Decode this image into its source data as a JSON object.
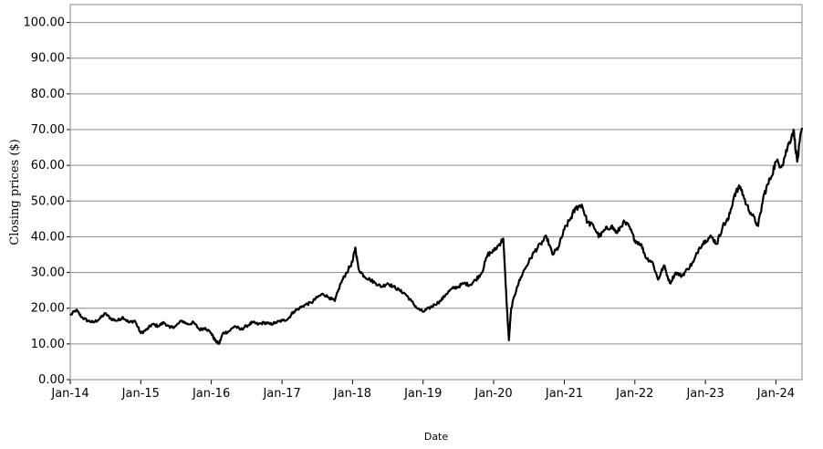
{
  "chart_data": {
    "type": "line",
    "title": "",
    "xlabel": "Date",
    "ylabel": "Closing prices ($)",
    "ylim": [
      0,
      105
    ],
    "y_ticks": [
      "0.00",
      "10.00",
      "20.00",
      "30.00",
      "40.00",
      "50.00",
      "60.00",
      "70.00",
      "80.00",
      "90.00",
      "100.00"
    ],
    "x_ticks": [
      "Jan-14",
      "Jan-15",
      "Jan-16",
      "Jan-17",
      "Jan-18",
      "Jan-19",
      "Jan-20",
      "Jan-21",
      "Jan-22",
      "Jan-23",
      "Jan-24"
    ],
    "x_range": [
      "2014-01-01",
      "2024-05-15"
    ],
    "grid": "horizontal",
    "legend": "none",
    "line_color": "#000000",
    "series": [
      {
        "x": [
          "2014-01-01",
          "2014-02-01",
          "2014-03-01",
          "2014-04-01",
          "2014-05-01",
          "2014-06-01",
          "2014-07-01",
          "2014-08-01",
          "2014-09-01",
          "2014-10-01",
          "2014-11-01",
          "2014-12-01",
          "2015-01-01",
          "2015-02-01",
          "2015-03-01",
          "2015-04-01",
          "2015-05-01",
          "2015-06-01",
          "2015-07-01",
          "2015-08-01",
          "2015-09-01",
          "2015-10-01",
          "2015-11-01",
          "2015-12-01",
          "2016-01-01",
          "2016-01-20",
          "2016-02-10",
          "2016-03-01",
          "2016-04-01",
          "2016-05-01",
          "2016-06-01",
          "2016-07-01",
          "2016-08-01",
          "2016-09-01",
          "2016-10-01",
          "2016-11-01",
          "2016-12-01",
          "2017-01-01",
          "2017-02-01",
          "2017-03-01",
          "2017-04-01",
          "2017-05-01",
          "2017-06-01",
          "2017-07-01",
          "2017-08-01",
          "2017-09-01",
          "2017-10-01",
          "2017-11-01",
          "2017-12-01",
          "2018-01-01",
          "2018-01-15",
          "2018-02-01",
          "2018-03-01",
          "2018-04-01",
          "2018-05-01",
          "2018-06-01",
          "2018-07-01",
          "2018-08-01",
          "2018-09-01",
          "2018-10-01",
          "2018-11-01",
          "2018-12-01",
          "2019-01-01",
          "2019-02-01",
          "2019-03-01",
          "2019-04-01",
          "2019-05-01",
          "2019-06-01",
          "2019-07-01",
          "2019-08-01",
          "2019-09-01",
          "2019-10-01",
          "2019-11-01",
          "2019-12-01",
          "2020-01-01",
          "2020-02-01",
          "2020-02-20",
          "2020-03-10",
          "2020-03-20",
          "2020-04-01",
          "2020-05-01",
          "2020-06-01",
          "2020-07-01",
          "2020-08-01",
          "2020-09-01",
          "2020-10-01",
          "2020-11-01",
          "2020-12-01",
          "2021-01-01",
          "2021-02-01",
          "2021-03-01",
          "2021-04-01",
          "2021-05-01",
          "2021-06-01",
          "2021-07-01",
          "2021-08-01",
          "2021-09-01",
          "2021-10-01",
          "2021-11-01",
          "2021-12-01",
          "2022-01-01",
          "2022-02-01",
          "2022-03-01",
          "2022-04-01",
          "2022-05-01",
          "2022-06-01",
          "2022-07-01",
          "2022-08-01",
          "2022-09-01",
          "2022-10-01",
          "2022-11-01",
          "2022-12-01",
          "2023-01-01",
          "2023-02-01",
          "2023-03-01",
          "2023-04-01",
          "2023-05-01",
          "2023-06-01",
          "2023-07-01",
          "2023-08-01",
          "2023-09-01",
          "2023-10-01",
          "2023-11-01",
          "2023-12-01",
          "2024-01-01",
          "2024-02-01",
          "2024-03-01",
          "2024-04-01",
          "2024-04-20",
          "2024-05-15"
        ],
        "y": [
          18,
          19.5,
          17.5,
          16.5,
          16,
          17,
          18.5,
          17,
          16.5,
          17.5,
          16,
          16.5,
          13,
          14,
          15.5,
          15,
          16,
          14.5,
          15,
          16.5,
          15.5,
          16,
          14,
          14.5,
          13,
          11,
          10,
          13,
          13.5,
          15,
          14,
          15,
          16,
          15.5,
          16,
          15.5,
          16,
          16.5,
          17,
          19,
          20,
          21,
          21.5,
          23,
          24,
          23,
          22,
          27,
          30,
          33,
          37,
          31,
          29,
          28,
          27,
          26,
          27,
          26,
          25,
          24,
          22,
          20,
          19,
          20,
          21,
          22,
          24,
          25.5,
          26,
          27,
          26.5,
          28,
          30,
          35,
          36,
          38,
          39.5,
          20,
          11,
          20,
          26,
          30,
          33,
          36,
          38,
          40,
          35,
          37,
          42,
          45,
          48,
          49,
          44,
          43,
          40,
          42,
          43,
          41,
          44,
          43,
          39,
          38,
          34,
          33,
          28,
          32,
          27,
          30,
          29,
          31,
          33,
          37,
          39,
          40,
          38,
          43,
          45,
          52,
          54,
          49,
          46,
          43,
          52,
          56,
          61,
          60,
          65,
          70,
          61,
          70.5
        ]
      }
    ]
  }
}
